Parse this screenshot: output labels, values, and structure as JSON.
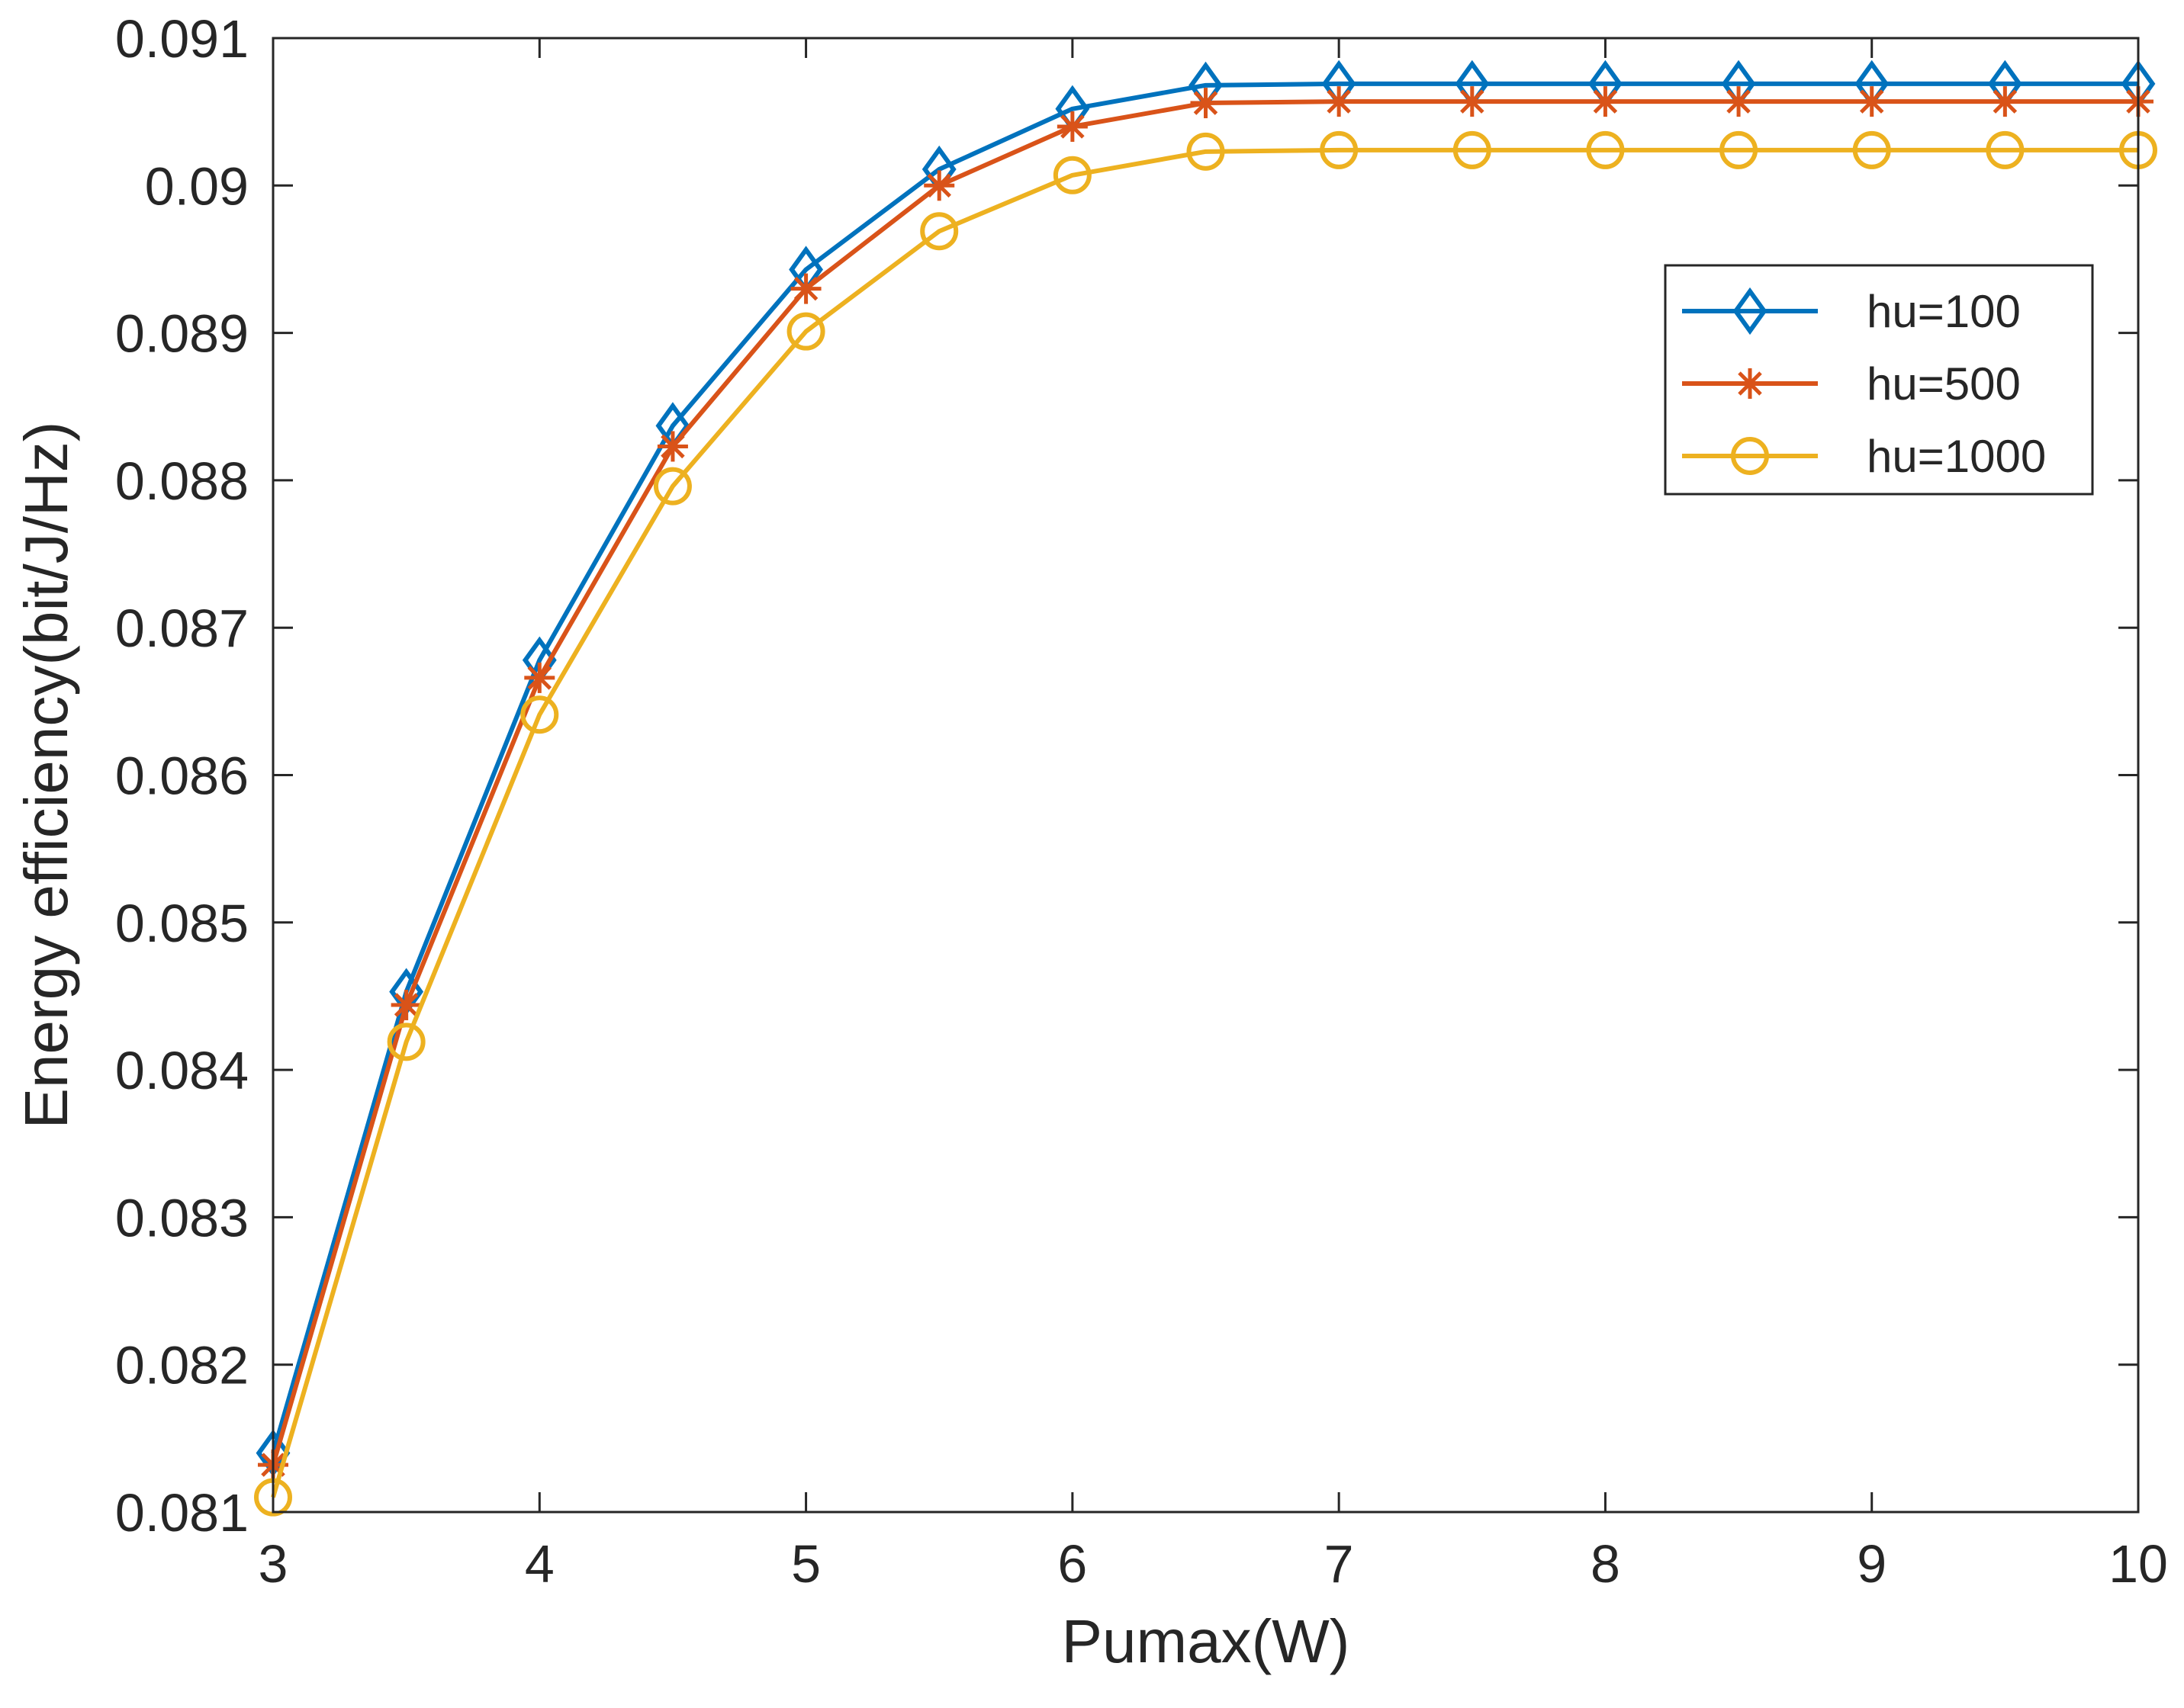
{
  "chart_data": {
    "type": "line",
    "title": "",
    "xlabel": "Pumax(W)",
    "ylabel": "Energy efficiency(bit/J/Hz)",
    "xlim": [
      3,
      10
    ],
    "ylim": [
      0.081,
      0.091
    ],
    "x_ticks": [
      3,
      4,
      5,
      6,
      7,
      8,
      9,
      10
    ],
    "x_tick_labels": [
      "3",
      "4",
      "5",
      "6",
      "7",
      "8",
      "9",
      "10"
    ],
    "y_ticks": [
      0.081,
      0.082,
      0.083,
      0.084,
      0.085,
      0.086,
      0.087,
      0.088,
      0.089,
      0.09,
      0.091
    ],
    "y_tick_labels": [
      "0.081",
      "0.082",
      "0.083",
      "0.084",
      "0.085",
      "0.086",
      "0.087",
      "0.088",
      "0.089",
      "0.09",
      "0.091"
    ],
    "grid": false,
    "legend_position": "top-right",
    "x": [
      3,
      3.5,
      4,
      4.5,
      5,
      5.5,
      6,
      6.5,
      7,
      7.5,
      8,
      8.5,
      9,
      9.5,
      10
    ],
    "series": [
      {
        "name": "hu=100",
        "color": "#0072BD",
        "marker": "diamond",
        "values": [
          0.0814,
          0.08453,
          0.08678,
          0.08837,
          0.08943,
          0.09011,
          0.09052,
          0.09068,
          0.09069,
          0.09069,
          0.09069,
          0.09069,
          0.09069,
          0.09069,
          0.09069
        ]
      },
      {
        "name": "hu=500",
        "color": "#D95319",
        "marker": "asterisk",
        "values": [
          0.08132,
          0.08444,
          0.08666,
          0.08823,
          0.0893,
          0.09,
          0.0904,
          0.09056,
          0.09057,
          0.09057,
          0.09057,
          0.09057,
          0.09057,
          0.09057,
          0.09057
        ]
      },
      {
        "name": "hu=1000",
        "color": "#EDB120",
        "marker": "circle",
        "values": [
          0.0811,
          0.08419,
          0.08641,
          0.08796,
          0.08901,
          0.08969,
          0.09007,
          0.09023,
          0.09024,
          0.09024,
          0.09024,
          0.09024,
          0.09024,
          0.09024,
          0.09024
        ]
      }
    ]
  }
}
